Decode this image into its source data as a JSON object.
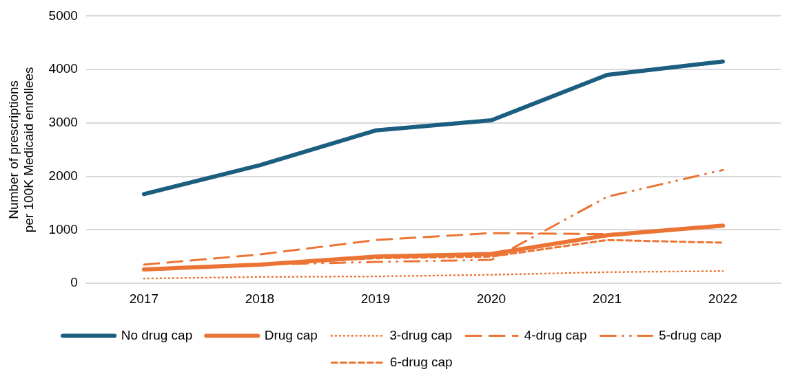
{
  "chart_data": {
    "type": "line",
    "ylabel": "Number of prescriptions per 100K Medicaid enrollees",
    "categories": [
      "2017",
      "2018",
      "2019",
      "2020",
      "2021",
      "2022"
    ],
    "ylim": [
      0,
      5000
    ],
    "yticks": [
      0,
      1000,
      2000,
      3000,
      4000,
      5000
    ],
    "grid": "y",
    "legend": "bottom",
    "marker": "none",
    "series": [
      {
        "name": "No drug cap",
        "color": "#1b5e80",
        "line_style": "solid",
        "values": [
          1670,
          2210,
          2860,
          3050,
          3900,
          4150
        ]
      },
      {
        "name": "Drug cap",
        "color": "#eb7434",
        "line_style": "solid",
        "values": [
          260,
          350,
          500,
          550,
          900,
          1080
        ]
      },
      {
        "name": "3-drug cap",
        "color": "#eb7434",
        "line_style": "dotted",
        "values": [
          90,
          120,
          130,
          160,
          210,
          230
        ]
      },
      {
        "name": "4-drug cap",
        "color": "#eb7434",
        "line_style": "dashed",
        "values": [
          350,
          540,
          810,
          940,
          920,
          1060
        ]
      },
      {
        "name": "5-drug cap",
        "color": "#eb7434",
        "line_style": "dashdot",
        "values": [
          250,
          350,
          400,
          440,
          1620,
          2120
        ]
      },
      {
        "name": "6-drug cap",
        "color": "#eb7434",
        "line_style": "shortdash",
        "values": [
          250,
          350,
          470,
          500,
          810,
          760
        ]
      }
    ]
  }
}
